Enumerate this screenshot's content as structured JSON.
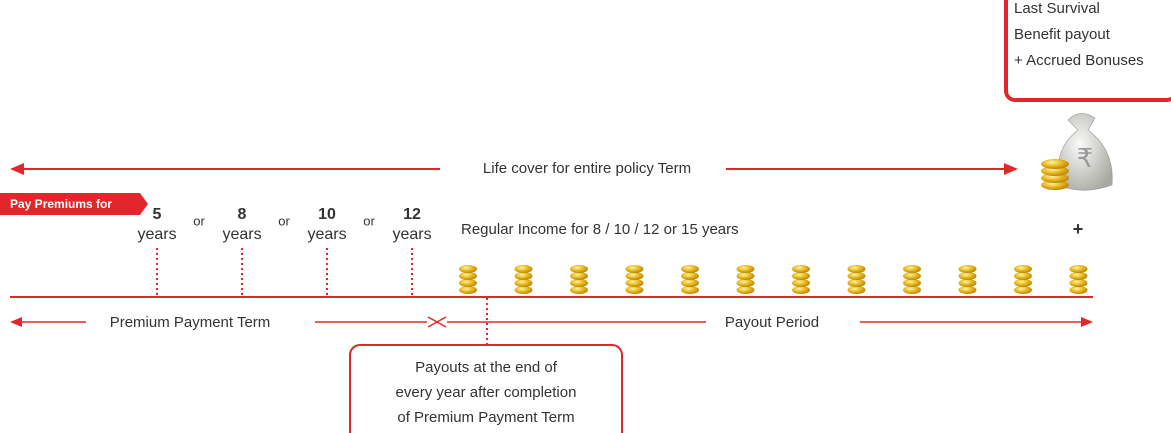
{
  "bonus_box": {
    "lines": [
      "Last Survival",
      "Benefit payout",
      "+ Accrued Bonuses"
    ]
  },
  "bag_symbol": "₹",
  "life_cover": "Life cover for entire policy Term",
  "premium_tag": "Pay Premiums for",
  "terms": [
    {
      "number": 5,
      "unit": "years"
    },
    {
      "number": 8,
      "unit": "years"
    },
    {
      "number": 10,
      "unit": "years"
    },
    {
      "number": 12,
      "unit": "years"
    }
  ],
  "connectors": [
    "or",
    "or",
    "or"
  ],
  "income": {
    "label": "Regular Income for 8 / 10 / 12 or 15 years",
    "plus": "+"
  },
  "timeline": {
    "premium_payment_term": "Premium Payment Term",
    "payout_period": "Payout Period"
  },
  "payout_box": {
    "lines": [
      "Payouts at the end of",
      "every year after completion",
      "of Premium Payment Term"
    ]
  }
}
